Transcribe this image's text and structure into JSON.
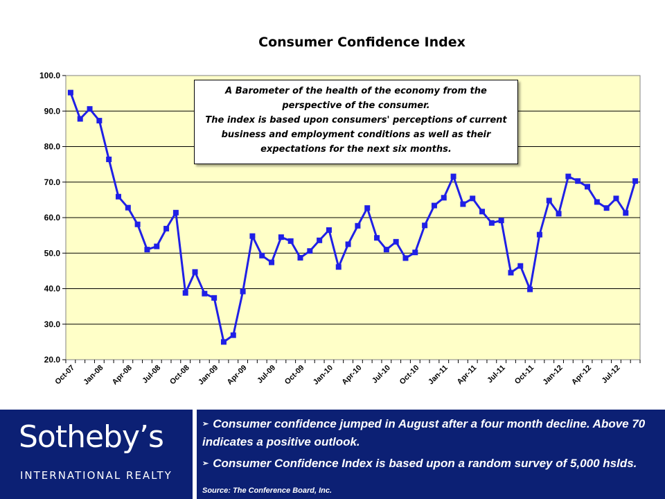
{
  "chart_data": {
    "type": "line",
    "title": "Consumer Confidence Index",
    "xlabel": "",
    "ylabel": "",
    "ylim": [
      20,
      100
    ],
    "yticks": [
      "20.0",
      "30.0",
      "40.0",
      "50.0",
      "60.0",
      "70.0",
      "80.0",
      "90.0",
      "100.0"
    ],
    "xtick_labels": [
      "Oct-07",
      "Jan-08",
      "Apr-08",
      "Jul-08",
      "Oct-08",
      "Jan-09",
      "Apr-09",
      "Jul-09",
      "Oct-09",
      "Jan-10",
      "Apr-10",
      "Jul-10",
      "Oct-10",
      "Jan-11",
      "Apr-11",
      "Jul-11",
      "Oct-11",
      "Jan-12",
      "Apr-12",
      "Jul-12"
    ],
    "grid": true,
    "colors": {
      "line": "#1f1fe6",
      "plot_bg": "#ffffc8",
      "grid": "#000000"
    },
    "series": [
      {
        "name": "Consumer Confidence Index",
        "values": [
          95.2,
          87.8,
          90.6,
          87.3,
          76.4,
          65.9,
          62.8,
          58.1,
          51.0,
          51.9,
          56.9,
          61.4,
          38.8,
          44.7,
          38.6,
          37.4,
          25.0,
          26.9,
          39.2,
          54.8,
          49.3,
          47.4,
          54.5,
          53.4,
          48.7,
          50.6,
          53.6,
          56.5,
          46.1,
          52.5,
          57.7,
          62.7,
          54.3,
          51.0,
          53.2,
          48.6,
          50.2,
          57.8,
          63.4,
          65.6,
          71.6,
          63.8,
          65.4,
          61.7,
          58.5,
          59.2,
          44.5,
          46.4,
          39.8,
          55.2,
          64.8,
          61.1,
          71.6,
          70.3,
          68.7,
          64.4,
          62.7,
          65.4,
          61.3,
          70.3
        ]
      }
    ]
  },
  "callout_lines": [
    "A Barometer  of the health of the economy from the",
    "perspective  of the consumer.",
    "The  index is based upon consumers'  perceptions of current",
    "business and employment  conditions as well as their",
    "expectations for the next six months."
  ],
  "footer": {
    "logo_main": "Sotheby’s",
    "logo_sub": "INTERNATIONAL REALTY",
    "bullets": [
      "Consumer confidence jumped in August after a four month decline. Above 70 indicates a positive outlook.",
      "Consumer Confidence Index is based upon a random survey of 5,000 hslds."
    ],
    "source": "Source: The Conference  Board, Inc."
  }
}
